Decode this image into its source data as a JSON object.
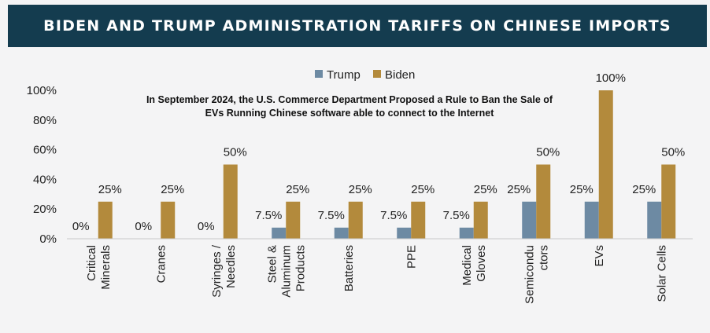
{
  "chart_data": {
    "type": "bar",
    "title": "BIDEN AND TRUMP ADMINISTRATION TARIFFS ON CHINESE IMPORTS",
    "annotation": [
      "In September 2024, the U.S. Commerce Department Proposed a Rule to Ban the Sale of",
      "EVs Running Chinese software able to connect to the Internet"
    ],
    "categories": [
      [
        "Critical",
        "Minerals"
      ],
      [
        "Cranes"
      ],
      [
        "Syringes /",
        "Needles"
      ],
      [
        "Steel &",
        "Aluminum",
        "Products"
      ],
      [
        "Batteries"
      ],
      [
        "PPE"
      ],
      [
        "Medical",
        "Gloves"
      ],
      [
        "Semicondu",
        "ctors"
      ],
      [
        "EVs"
      ],
      [
        "Solar Cells"
      ]
    ],
    "series": [
      {
        "name": "Trump",
        "color": "#6d8aa3",
        "values": [
          0,
          0,
          0,
          7.5,
          7.5,
          7.5,
          7.5,
          25,
          25,
          25
        ],
        "labels": [
          "0%",
          "0%",
          "0%",
          "7.5%",
          "7.5%",
          "7.5%",
          "7.5%",
          "25%",
          "25%",
          "25%"
        ]
      },
      {
        "name": "Biden",
        "color": "#b38a3c",
        "values": [
          25,
          25,
          50,
          25,
          25,
          25,
          25,
          50,
          100,
          50
        ],
        "labels": [
          "25%",
          "25%",
          "50%",
          "25%",
          "25%",
          "25%",
          "25%",
          "50%",
          "100%",
          "50%"
        ]
      }
    ],
    "ylim": [
      0,
      100
    ],
    "yticks": [
      "0%",
      "20%",
      "40%",
      "60%",
      "80%",
      "100%"
    ],
    "ytick_values": [
      0,
      20,
      40,
      60,
      80,
      100
    ],
    "grid": false,
    "legend_position": "top-center"
  }
}
